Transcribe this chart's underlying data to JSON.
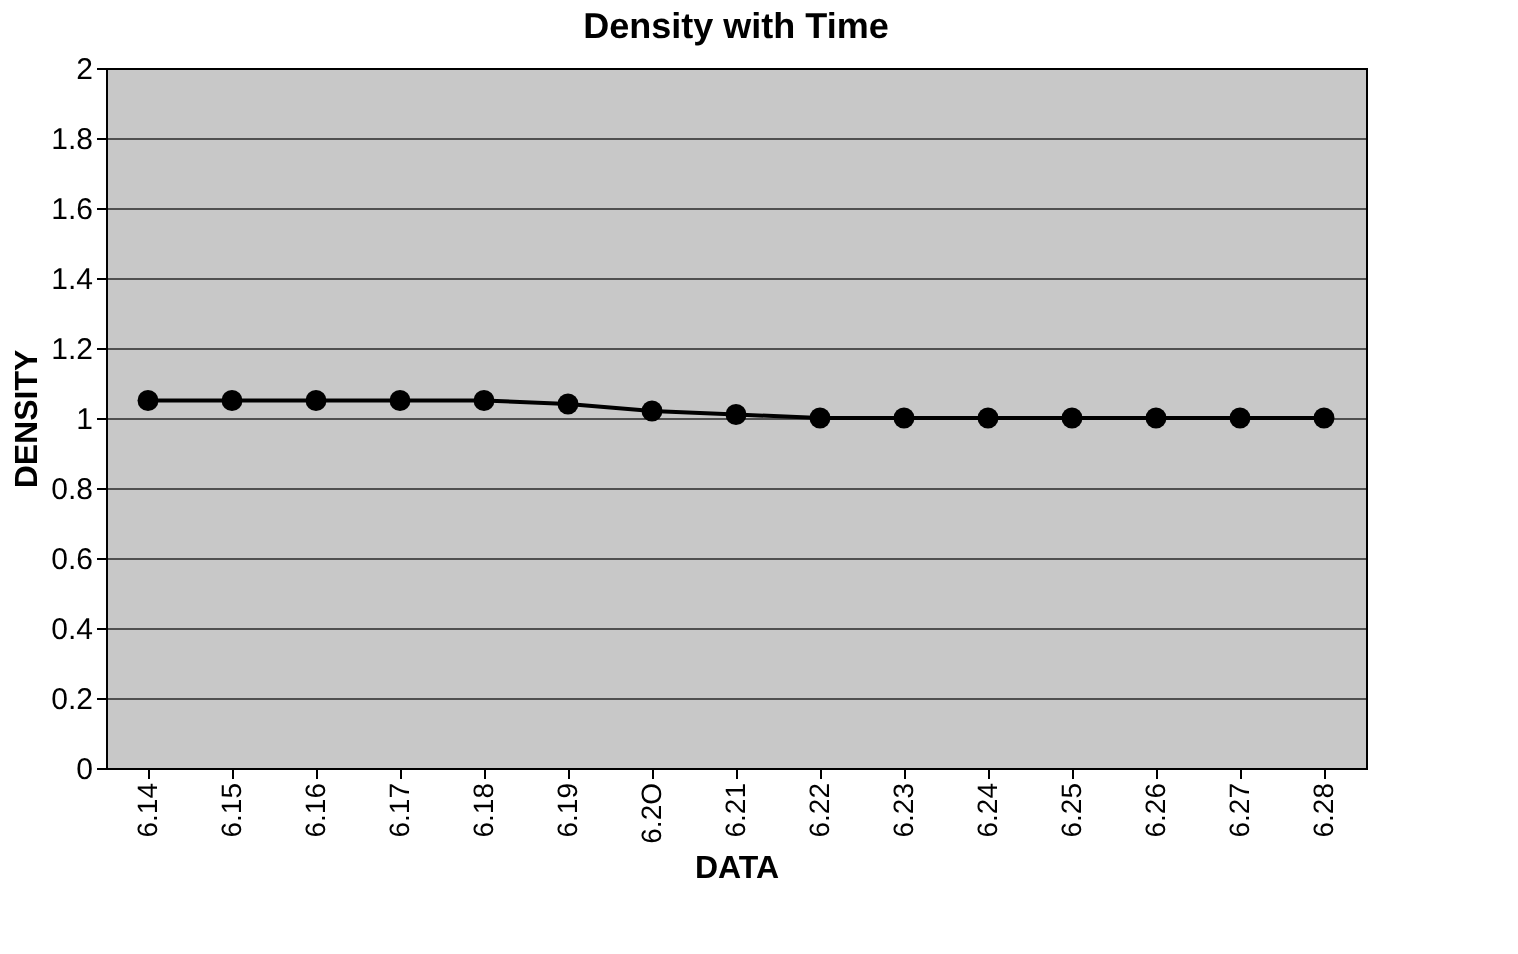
{
  "chart_data": {
    "type": "line",
    "title": "Density with Time",
    "xlabel": "DATA",
    "ylabel": "DENSITY",
    "categories": [
      "6.14",
      "6.15",
      "6.16",
      "6.17",
      "6.18",
      "6.19",
      "6.2O",
      "6.21",
      "6.22",
      "6.23",
      "6.24",
      "6.25",
      "6.26",
      "6.27",
      "6.28"
    ],
    "series": [
      {
        "color": "#000000",
        "values": [
          1.05,
          1.05,
          1.05,
          1.05,
          1.05,
          1.04,
          1.02,
          1.01,
          1.0,
          1.0,
          1.0,
          1.0,
          1.0,
          1.0,
          1.0
        ]
      }
    ],
    "ylim": [
      0,
      2
    ],
    "yticks": [
      0,
      0.2,
      0.4,
      0.6,
      0.8,
      1,
      1.2,
      1.4,
      1.6,
      1.8,
      2
    ],
    "grid": "y",
    "marker": "circle",
    "line_style": "solid"
  }
}
